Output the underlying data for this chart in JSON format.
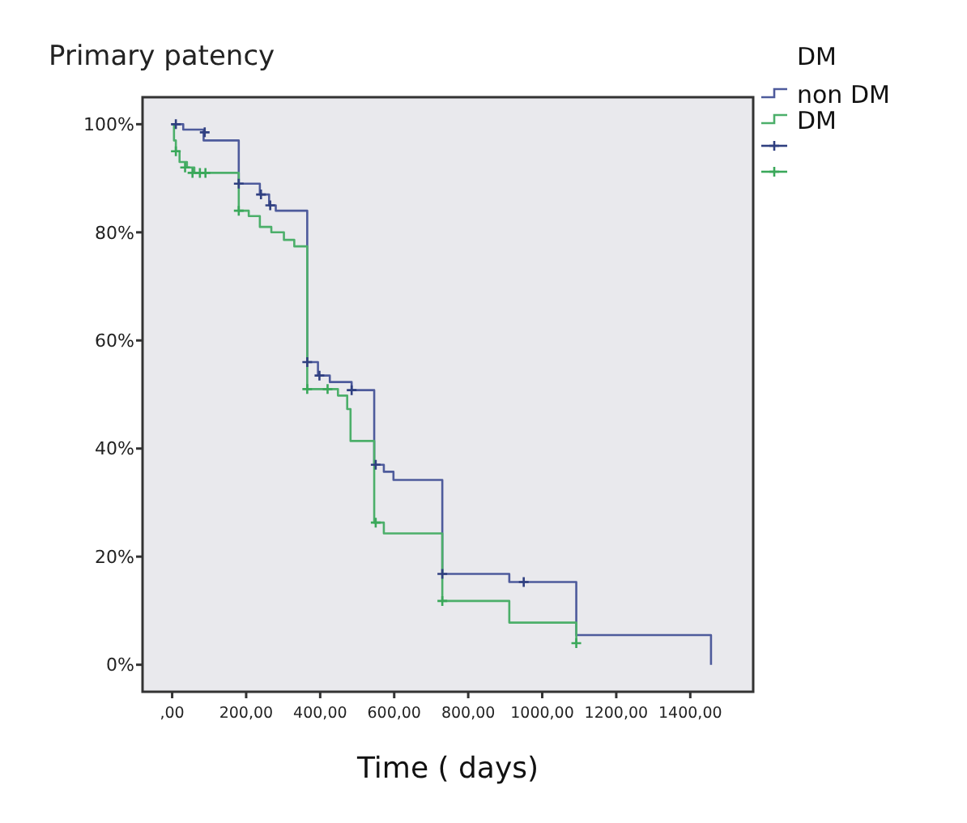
{
  "chart_data": {
    "type": "step",
    "title": "Primary patency",
    "xlabel": "Time ( days)",
    "legend_title": "DM",
    "legend": "top right",
    "xlim": [
      -80,
      1570
    ],
    "ylim": [
      -5,
      105
    ],
    "xticks": [
      {
        "value": 0,
        "label": ",00"
      },
      {
        "value": 200,
        "label": "200,00"
      },
      {
        "value": 400,
        "label": "400,00"
      },
      {
        "value": 600,
        "label": "600,00"
      },
      {
        "value": 800,
        "label": "800,00"
      },
      {
        "value": 1000,
        "label": "1000,00"
      },
      {
        "value": 1200,
        "label": "1200,00"
      },
      {
        "value": 1400,
        "label": "1400,00"
      }
    ],
    "yticks": [
      {
        "value": 0,
        "label": "0%"
      },
      {
        "value": 20,
        "label": "20%"
      },
      {
        "value": 40,
        "label": "40%"
      },
      {
        "value": 60,
        "label": "60%"
      },
      {
        "value": 80,
        "label": "80%"
      },
      {
        "value": 100,
        "label": "100%"
      }
    ],
    "grid": false,
    "series": [
      {
        "name": "non DM",
        "color": "#4e5b9c",
        "x": [
          0,
          30,
          85,
          180,
          237,
          262,
          280,
          365,
          394,
          426,
          485,
          546,
          572,
          598,
          730,
          911,
          1092,
          1456
        ],
        "values": [
          100,
          99,
          97,
          89,
          87,
          85,
          84,
          56,
          53.5,
          52.3,
          50.8,
          37,
          35.7,
          34.2,
          16.8,
          15.3,
          5.5,
          0
        ]
      },
      {
        "name": "DM",
        "color": "#4caf6a",
        "x": [
          0,
          5,
          10,
          20,
          40,
          60,
          180,
          207,
          237,
          268,
          302,
          330,
          365,
          448,
          473,
          482,
          546,
          572,
          730,
          911,
          1092
        ],
        "values": [
          100,
          97,
          95,
          93,
          92,
          91,
          84,
          83,
          81,
          80,
          78.6,
          77.4,
          51,
          49.8,
          47.3,
          41.4,
          26.3,
          24.3,
          11.8,
          7.8,
          4
        ]
      },
      {
        "type": "scatter",
        "marker": "cross",
        "color": "#2f3f80",
        "x": [
          10,
          88,
          180,
          240,
          265,
          365,
          398,
          485,
          550,
          730,
          950
        ],
        "values": [
          100,
          98.5,
          89,
          87,
          85,
          56,
          53.5,
          50.8,
          37,
          16.8,
          15.3
        ]
      },
      {
        "type": "scatter",
        "marker": "cross",
        "color": "#3aa85a",
        "x": [
          10,
          35,
          55,
          75,
          90,
          180,
          365,
          420,
          550,
          730,
          1092
        ],
        "values": [
          95,
          92,
          91,
          91,
          91,
          84,
          51,
          51,
          26.3,
          11.8,
          4
        ]
      }
    ]
  }
}
